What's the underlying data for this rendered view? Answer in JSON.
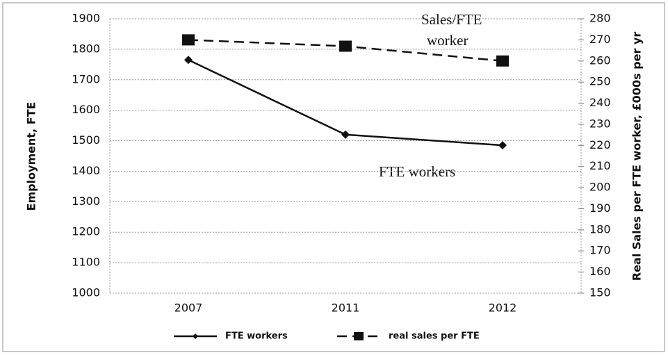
{
  "chart_data": {
    "type": "line",
    "categories": [
      "2007",
      "2011",
      "2012"
    ],
    "series": [
      {
        "name": "FTE workers",
        "color": "#111111",
        "values": [
          1765,
          1520,
          1485
        ],
        "marker": "diamond",
        "line_style": "solid"
      },
      {
        "name": "real sales per FTE",
        "color": "#111111",
        "values": [
          270,
          267,
          260
        ],
        "axis": "y2",
        "marker": "square",
        "line_style": "dashed"
      }
    ],
    "ylabel": "Employment, FTE",
    "y2label": "Real Sales per FTE worker, £000s per yr",
    "ylim": [
      1000,
      1900
    ],
    "yticks": [
      1000,
      1100,
      1200,
      1300,
      1400,
      1500,
      1600,
      1700,
      1800,
      1900
    ],
    "y2lim": [
      150,
      280
    ],
    "y2ticks": [
      150,
      160,
      170,
      180,
      190,
      200,
      210,
      220,
      230,
      240,
      250,
      260,
      270,
      280
    ],
    "annotations": [
      "Sales/FTE",
      "worker",
      "FTE workers"
    ],
    "grid": true,
    "legend": "bottom"
  }
}
